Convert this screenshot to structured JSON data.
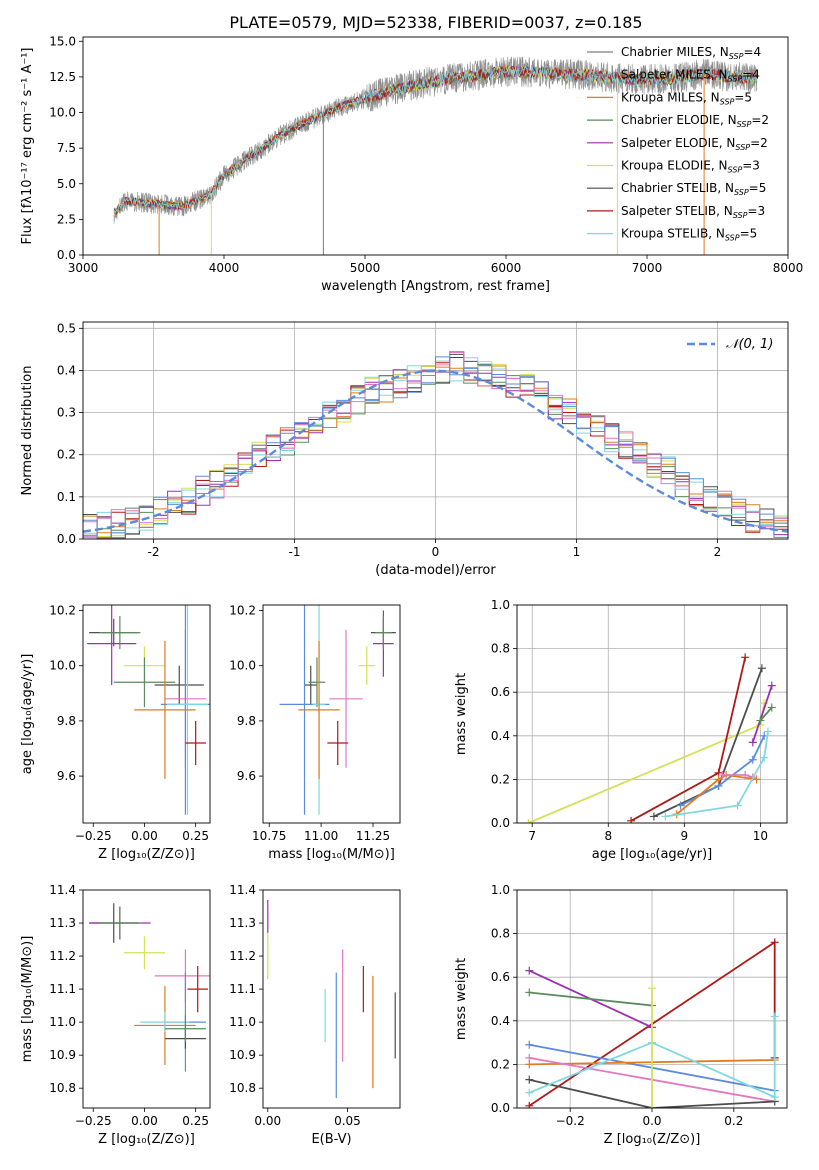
{
  "figure": {
    "title": "PLATE=0579, MJD=52338, FIBERID=0037, z=0.185"
  },
  "chart_data": [
    {
      "id": "spectrum",
      "type": "line",
      "xlabel": "wavelength [Angstrom, rest frame]",
      "ylabel": "Flux [fλ10⁻¹⁷ erg cm⁻² s⁻¹ A⁻¹]",
      "xlim": [
        3000,
        8000
      ],
      "ylim": [
        0,
        15.3
      ],
      "xticks": [
        3000,
        4000,
        5000,
        6000,
        7000,
        8000
      ],
      "yticks": [
        0.0,
        2.5,
        5.0,
        7.5,
        10.0,
        12.5,
        15.0
      ],
      "ytick_labels": [
        "0.0",
        "2.5",
        "5.0",
        "7.5",
        "10.0",
        "12.5",
        "15.0"
      ],
      "observed_trend": {
        "x": [
          3220,
          3300,
          3500,
          3700,
          3900,
          4000,
          4200,
          4400,
          4600,
          4800,
          5000,
          5200,
          5400,
          5600,
          5800,
          6000,
          6200,
          6400,
          6600,
          6800,
          7000,
          7200,
          7400,
          7600,
          7780
        ],
        "y": [
          2.9,
          3.8,
          3.6,
          3.4,
          4.2,
          5.6,
          7.0,
          8.4,
          9.4,
          10.3,
          11.0,
          11.6,
          12.0,
          12.4,
          12.6,
          12.9,
          12.8,
          12.7,
          12.6,
          12.4,
          12.3,
          12.4,
          12.7,
          12.5,
          12.4
        ]
      },
      "legend_position": "upper right",
      "series": [
        {
          "name": "Chabrier MILES, N_SSP=4",
          "label_main": "Chabrier MILES, N",
          "label_sub": "SSP",
          "label_tail": "=4",
          "color": "#7f7f7f"
        },
        {
          "name": "Salpeter MILES, N_SSP=4",
          "label_main": "Salpeter MILES, N",
          "label_sub": "SSP",
          "label_tail": "=4",
          "color": "#8a8a8a"
        },
        {
          "name": "Kroupa MILES, N_SSP=5",
          "label_main": "Kroupa MILES, N",
          "label_sub": "SSP",
          "label_tail": "=5",
          "color": "#e07b1f"
        },
        {
          "name": "Chabrier ELODIE, N_SSP=2",
          "label_main": "Chabrier ELODIE, N",
          "label_sub": "SSP",
          "label_tail": "=2",
          "color": "#5b8a5b"
        },
        {
          "name": "Salpeter ELODIE, N_SSP=2",
          "label_main": "Salpeter ELODIE, N",
          "label_sub": "SSP",
          "label_tail": "=2",
          "color": "#9b30b0"
        },
        {
          "name": "Kroupa ELODIE, N_SSP=3",
          "label_main": "Kroupa ELODIE, N",
          "label_sub": "SSP",
          "label_tail": "=3",
          "color": "#d4e157"
        },
        {
          "name": "Chabrier STELIB, N_SSP=5",
          "label_main": "Chabrier STELIB, N",
          "label_sub": "SSP",
          "label_tail": "=5",
          "color": "#4d4d4d"
        },
        {
          "name": "Salpeter STELIB, N_SSP=3",
          "label_main": "Salpeter STELIB, N",
          "label_sub": "SSP",
          "label_tail": "=3",
          "color": "#b01818"
        },
        {
          "name": "Kroupa STELIB, N_SSP=5",
          "label_main": "Kroupa STELIB, N",
          "label_sub": "SSP",
          "label_tail": "=5",
          "color": "#7fd8e0"
        }
      ]
    },
    {
      "id": "residuals",
      "type": "line",
      "xlabel": "(data-model)/error",
      "ylabel": "Normed distribution",
      "xlim": [
        -2.5,
        2.5
      ],
      "ylim": [
        0,
        0.515
      ],
      "xticks": [
        -2,
        -1,
        0,
        1,
        2
      ],
      "yticks": [
        0.0,
        0.1,
        0.2,
        0.3,
        0.4,
        0.5
      ],
      "ytick_labels": [
        "0.0",
        "0.1",
        "0.2",
        "0.3",
        "0.4",
        "0.5"
      ],
      "grid": true,
      "legend_position": "upper right",
      "normal_label": "𝒩(0, 1)",
      "normal_color": "#5b8bd9",
      "bin_start": -2.5,
      "bin_width": 0.1,
      "bar_values": [
        0.025,
        0.03,
        0.035,
        0.045,
        0.055,
        0.065,
        0.08,
        0.09,
        0.115,
        0.13,
        0.15,
        0.175,
        0.2,
        0.22,
        0.23,
        0.25,
        0.27,
        0.29,
        0.31,
        0.33,
        0.35,
        0.36,
        0.37,
        0.38,
        0.39,
        0.4,
        0.41,
        0.4,
        0.39,
        0.38,
        0.37,
        0.36,
        0.34,
        0.32,
        0.3,
        0.28,
        0.26,
        0.24,
        0.22,
        0.2,
        0.18,
        0.16,
        0.13,
        0.11,
        0.09,
        0.08,
        0.065,
        0.05,
        0.04,
        0.03
      ]
    },
    {
      "id": "age_vs_Z",
      "type": "scatter",
      "xlabel": "Z [log₁₀(Z/Z⊙)]",
      "ylabel": "age  [log₁₀(age/yr)]",
      "xlim": [
        -0.3,
        0.32
      ],
      "ylim": [
        9.43,
        10.22
      ],
      "xticks": [
        -0.25,
        0.0,
        0.25
      ],
      "xtick_labels": [
        "−0.25",
        "0.00",
        "0.25"
      ],
      "yticks": [
        9.6,
        9.8,
        10.0,
        10.2
      ],
      "ytick_labels": [
        "9.6",
        "9.8",
        "10.0",
        "10.2"
      ],
      "points": [
        {
          "x": -0.15,
          "y": 10.12,
          "xerr": 0.12,
          "yerr": 0.05,
          "color": "#4d4d4d"
        },
        {
          "x": -0.16,
          "y": 10.08,
          "xerr": 0.12,
          "yerr": 0.15,
          "color": "#9b30b0"
        },
        {
          "x": -0.12,
          "y": 10.12,
          "xerr": 0.1,
          "yerr": 0.06,
          "color": "#5b8a5b"
        },
        {
          "x": 0.0,
          "y": 10.0,
          "xerr": 0.1,
          "yerr": 0.07,
          "color": "#d4e157"
        },
        {
          "x": 0.17,
          "y": 9.93,
          "xerr": 0.12,
          "yerr": 0.07,
          "color": "#4d4d4d"
        },
        {
          "x": 0.0,
          "y": 9.94,
          "xerr": 0.15,
          "yerr": 0.09,
          "color": "#5b8a5b"
        },
        {
          "x": 0.2,
          "y": 9.88,
          "xerr": 0.1,
          "yerr": 0.25,
          "color": "#e377c2"
        },
        {
          "x": 0.2,
          "y": 9.86,
          "xerr": 0.12,
          "yerr": 0.4,
          "color": "#5b8bd9"
        },
        {
          "x": 0.21,
          "y": 9.86,
          "xerr": 0.1,
          "yerr": 0.4,
          "color": "#7fd8e0"
        },
        {
          "x": 0.1,
          "y": 9.84,
          "xerr": 0.15,
          "yerr": 0.25,
          "color": "#e07b1f"
        },
        {
          "x": 0.25,
          "y": 9.72,
          "xerr": 0.05,
          "yerr": 0.08,
          "color": "#b01818"
        }
      ]
    },
    {
      "id": "age_vs_mass",
      "type": "scatter",
      "xlabel": "mass [log₁₀(M/M⊙)]",
      "ylabel": "",
      "xlim": [
        10.72,
        11.38
      ],
      "ylim": [
        9.43,
        10.22
      ],
      "xticks": [
        10.75,
        11.0,
        11.25
      ],
      "xtick_labels": [
        "10.75",
        "11.00",
        "11.25"
      ],
      "yticks": [
        9.6,
        9.8,
        10.0,
        10.2
      ],
      "ytick_labels": [
        "9.6",
        "9.8",
        "10.0",
        "10.2"
      ],
      "points": [
        {
          "x": 11.3,
          "y": 10.12,
          "xerr": 0.06,
          "yerr": 0.05,
          "color": "#4d4d4d"
        },
        {
          "x": 11.3,
          "y": 10.08,
          "xerr": 0.05,
          "yerr": 0.12,
          "color": "#9b30b0"
        },
        {
          "x": 11.3,
          "y": 10.12,
          "xerr": 0.04,
          "yerr": 0.06,
          "color": "#5b8a5b"
        },
        {
          "x": 11.22,
          "y": 10.0,
          "xerr": 0.04,
          "yerr": 0.07,
          "color": "#d4e157"
        },
        {
          "x": 10.95,
          "y": 9.93,
          "xerr": 0.03,
          "yerr": 0.07,
          "color": "#4d4d4d"
        },
        {
          "x": 10.98,
          "y": 9.94,
          "xerr": 0.04,
          "yerr": 0.09,
          "color": "#5b8a5b"
        },
        {
          "x": 11.12,
          "y": 9.88,
          "xerr": 0.08,
          "yerr": 0.25,
          "color": "#e377c2"
        },
        {
          "x": 10.92,
          "y": 9.86,
          "xerr": 0.12,
          "yerr": 0.4,
          "color": "#5b8bd9"
        },
        {
          "x": 10.99,
          "y": 9.86,
          "xerr": 0.03,
          "yerr": 0.4,
          "color": "#7fd8e0"
        },
        {
          "x": 10.99,
          "y": 9.84,
          "xerr": 0.1,
          "yerr": 0.25,
          "color": "#e07b1f"
        },
        {
          "x": 11.08,
          "y": 9.72,
          "xerr": 0.05,
          "yerr": 0.08,
          "color": "#b01818"
        }
      ]
    },
    {
      "id": "massweight_vs_age",
      "type": "line",
      "xlabel": "age  [log₁₀(age/yr)]",
      "ylabel": "mass weight",
      "xlim": [
        6.8,
        10.35
      ],
      "ylim": [
        0,
        1.0
      ],
      "xticks": [
        7,
        8,
        9,
        10
      ],
      "yticks": [
        0.0,
        0.2,
        0.4,
        0.6,
        0.8,
        1.0
      ],
      "ytick_labels": [
        "0.0",
        "0.2",
        "0.4",
        "0.6",
        "0.8",
        "1.0"
      ],
      "grid": true,
      "series": [
        {
          "color": "#d4e157",
          "x": [
            6.95,
            10.0,
            10.05
          ],
          "y": [
            0.0,
            0.45,
            0.55
          ]
        },
        {
          "color": "#b01818",
          "x": [
            8.3,
            9.45,
            9.8
          ],
          "y": [
            0.01,
            0.23,
            0.76
          ]
        },
        {
          "color": "#4d4d4d",
          "x": [
            8.6,
            9.45,
            10.02
          ],
          "y": [
            0.03,
            0.17,
            0.71
          ]
        },
        {
          "color": "#5b8bd9",
          "x": [
            8.95,
            9.45,
            9.9,
            10.05
          ],
          "y": [
            0.08,
            0.17,
            0.29,
            0.4
          ]
        },
        {
          "color": "#e07b1f",
          "x": [
            8.9,
            9.45,
            9.55,
            9.95
          ],
          "y": [
            0.04,
            0.2,
            0.22,
            0.2
          ]
        },
        {
          "color": "#e377c2",
          "x": [
            9.5,
            9.8,
            9.9
          ],
          "y": [
            0.22,
            0.22,
            0.21
          ]
        },
        {
          "color": "#7fd8e0",
          "x": [
            8.75,
            9.7,
            10.05,
            10.1
          ],
          "y": [
            0.03,
            0.08,
            0.3,
            0.42
          ]
        },
        {
          "color": "#9b30b0",
          "x": [
            9.9,
            10.15
          ],
          "y": [
            0.37,
            0.63
          ]
        },
        {
          "color": "#5b8a5b",
          "x": [
            10.0,
            10.15
          ],
          "y": [
            0.47,
            0.53
          ]
        }
      ]
    },
    {
      "id": "mass_vs_Z",
      "type": "scatter",
      "xlabel": "Z [log₁₀(Z/Z⊙)]",
      "ylabel": "mass [log₁₀(M/M⊙)]",
      "xlim": [
        -0.3,
        0.32
      ],
      "ylim": [
        10.74,
        11.4
      ],
      "xticks": [
        -0.25,
        0.0,
        0.25
      ],
      "xtick_labels": [
        "−0.25",
        "0.00",
        "0.25"
      ],
      "yticks": [
        10.8,
        10.9,
        11.0,
        11.1,
        11.2,
        11.3,
        11.4
      ],
      "ytick_labels": [
        "10.8",
        "10.9",
        "11.0",
        "11.1",
        "11.2",
        "11.3",
        "11.4"
      ],
      "points": [
        {
          "x": -0.15,
          "y": 11.3,
          "xerr": 0.12,
          "yerr": 0.06,
          "color": "#4d4d4d"
        },
        {
          "x": -0.12,
          "y": 11.3,
          "xerr": 0.15,
          "yerr": 0.05,
          "color": "#9b30b0"
        },
        {
          "x": -0.12,
          "y": 11.3,
          "xerr": 0.1,
          "yerr": 0.04,
          "color": "#5b8a5b"
        },
        {
          "x": 0.0,
          "y": 11.21,
          "xerr": 0.1,
          "yerr": 0.05,
          "color": "#d4e157"
        },
        {
          "x": 0.2,
          "y": 11.14,
          "xerr": 0.15,
          "yerr": 0.08,
          "color": "#e377c2"
        },
        {
          "x": 0.26,
          "y": 11.1,
          "xerr": 0.05,
          "yerr": 0.07,
          "color": "#b01818"
        },
        {
          "x": 0.2,
          "y": 11.0,
          "xerr": 0.1,
          "yerr": 0.15,
          "color": "#5b8bd9"
        },
        {
          "x": 0.1,
          "y": 10.99,
          "xerr": 0.15,
          "yerr": 0.12,
          "color": "#e07b1f"
        },
        {
          "x": 0.1,
          "y": 11.0,
          "xerr": 0.12,
          "yerr": 0.03,
          "color": "#7fd8e0"
        },
        {
          "x": 0.2,
          "y": 10.95,
          "xerr": 0.1,
          "yerr": 0.03,
          "color": "#4d4d4d"
        },
        {
          "x": 0.2,
          "y": 10.98,
          "xerr": 0.1,
          "yerr": 0.04,
          "color": "#5b8a5b"
        }
      ]
    },
    {
      "id": "mass_vs_ebv",
      "type": "scatter",
      "xlabel": "E(B-V)",
      "ylabel": "",
      "xlim": [
        -0.003,
        0.083
      ],
      "ylim": [
        10.74,
        11.4
      ],
      "xticks": [
        0.0,
        0.05
      ],
      "xtick_labels": [
        "0.00",
        "0.05"
      ],
      "yticks": [
        10.8,
        10.9,
        11.0,
        11.1,
        11.2,
        11.3,
        11.4
      ],
      "ytick_labels": [
        "10.8",
        "10.9",
        "11.0",
        "11.1",
        "11.2",
        "11.3",
        "11.4"
      ],
      "points": [
        {
          "x": 0.0,
          "y": 11.32,
          "xerr": 0,
          "yerr": 0.05,
          "color": "#9b30b0"
        },
        {
          "x": 0.0,
          "y": 11.2,
          "xerr": 0,
          "yerr": 0.07,
          "color": "#d4e157"
        },
        {
          "x": 0.036,
          "y": 11.02,
          "xerr": 0,
          "yerr": 0.08,
          "color": "#7fd8e0"
        },
        {
          "x": 0.043,
          "y": 10.96,
          "xerr": 0,
          "yerr": 0.19,
          "color": "#5b8bd9"
        },
        {
          "x": 0.047,
          "y": 11.05,
          "xerr": 0,
          "yerr": 0.17,
          "color": "#e377c2"
        },
        {
          "x": 0.06,
          "y": 11.1,
          "xerr": 0,
          "yerr": 0.07,
          "color": "#b01818"
        },
        {
          "x": 0.066,
          "y": 10.97,
          "xerr": 0,
          "yerr": 0.17,
          "color": "#e07b1f"
        },
        {
          "x": 0.08,
          "y": 10.99,
          "xerr": 0,
          "yerr": 0.1,
          "color": "#4d4d4d"
        }
      ]
    },
    {
      "id": "massweight_vs_Z",
      "type": "line",
      "xlabel": "Z [log₁₀(Z/Z⊙)]",
      "ylabel": "mass weight",
      "xlim": [
        -0.33,
        0.33
      ],
      "ylim": [
        0,
        1.0
      ],
      "xticks": [
        -0.2,
        0.0,
        0.2
      ],
      "xtick_labels": [
        "−0.2",
        "0.0",
        "0.2"
      ],
      "yticks": [
        0.0,
        0.2,
        0.4,
        0.6,
        0.8,
        1.0
      ],
      "ytick_labels": [
        "0.0",
        "0.2",
        "0.4",
        "0.6",
        "0.8",
        "1.0"
      ],
      "grid": true,
      "series": [
        {
          "color": "#b01818",
          "x": [
            -0.3,
            0.3,
            0.3
          ],
          "y": [
            0.01,
            0.76,
            0.23
          ]
        },
        {
          "color": "#9b30b0",
          "x": [
            -0.3,
            0.0
          ],
          "y": [
            0.63,
            0.37
          ]
        },
        {
          "color": "#5b8a5b",
          "x": [
            -0.3,
            0.0
          ],
          "y": [
            0.53,
            0.47
          ]
        },
        {
          "color": "#5b8bd9",
          "x": [
            -0.3,
            0.3
          ],
          "y": [
            0.29,
            0.08
          ]
        },
        {
          "color": "#e07b1f",
          "x": [
            -0.3,
            0.3
          ],
          "y": [
            0.2,
            0.22
          ]
        },
        {
          "color": "#e377c2",
          "x": [
            -0.3,
            0.3
          ],
          "y": [
            0.23,
            0.03
          ]
        },
        {
          "color": "#4d4d4d",
          "x": [
            -0.3,
            0.0,
            0.3
          ],
          "y": [
            0.13,
            0.0,
            0.03
          ]
        },
        {
          "color": "#7fd8e0",
          "x": [
            -0.3,
            0.0,
            0.3,
            0.3
          ],
          "y": [
            0.07,
            0.3,
            0.05,
            0.42
          ]
        },
        {
          "color": "#d4e157",
          "x": [
            0.0,
            0.0
          ],
          "y": [
            0.0,
            0.55
          ]
        }
      ]
    }
  ]
}
